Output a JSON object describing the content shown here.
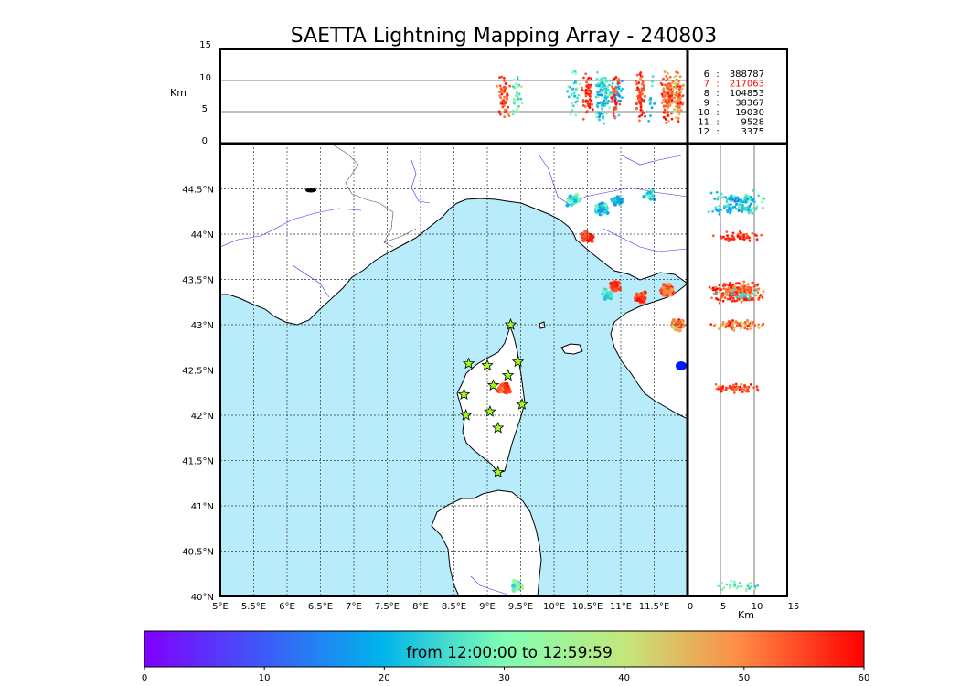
{
  "chart_data": {
    "type": "scatter",
    "title": "SAETTA Lightning Mapping Array - 240803",
    "map": {
      "lon_range": [
        5,
        12
      ],
      "lat_range": [
        40,
        45
      ],
      "lon_tick_labels": [
        "5°E",
        "5.5°E",
        "6°E",
        "6.5°E",
        "7°E",
        "7.5°E",
        "8°E",
        "8.5°E",
        "9°E",
        "9.5°E",
        "10°E",
        "10.5°E",
        "11°E",
        "11.5°E"
      ],
      "lat_tick_labels": [
        "40°N",
        "40.5°N",
        "41°N",
        "41.5°N",
        "42°N",
        "42.5°N",
        "43°N",
        "43.5°N",
        "44°N",
        "44.5°N"
      ],
      "grid": true,
      "sea_color": "#b8ecfb"
    },
    "altitude_panel": {
      "ylabel": "Km",
      "ylim": [
        0,
        15
      ],
      "tick_labels": [
        "0",
        "5",
        "10",
        "15"
      ],
      "hlines_km": [
        5,
        10
      ]
    },
    "side_panel": {
      "xlabel": "Km",
      "xlim": [
        0,
        15
      ],
      "tick_labels": [
        "0",
        "5",
        "10",
        "15"
      ],
      "vlines_km": [
        5,
        10
      ]
    },
    "station_counts": [
      {
        "stations": "6",
        "sep": ":",
        "count": "388787",
        "color": "#000000"
      },
      {
        "stations": "7",
        "sep": ":",
        "count": "217063",
        "color": "#ff0000"
      },
      {
        "stations": "8",
        "sep": ":",
        "count": "104853",
        "color": "#000000"
      },
      {
        "stations": "9",
        "sep": ":",
        "count": "38367",
        "color": "#000000"
      },
      {
        "stations": "10",
        "sep": ":",
        "count": "19030",
        "color": "#000000"
      },
      {
        "stations": "11",
        "sep": ":",
        "count": "9528",
        "color": "#000000"
      },
      {
        "stations": "12",
        "sep": ":",
        "count": "3375",
        "color": "#000000"
      }
    ],
    "stations": [
      {
        "lon": 9.35,
        "lat": 43.0
      },
      {
        "lon": 8.72,
        "lat": 42.57
      },
      {
        "lon": 9.0,
        "lat": 42.55
      },
      {
        "lon": 9.46,
        "lat": 42.59
      },
      {
        "lon": 9.31,
        "lat": 42.44
      },
      {
        "lon": 9.09,
        "lat": 42.33
      },
      {
        "lon": 8.65,
        "lat": 42.23
      },
      {
        "lon": 9.52,
        "lat": 42.12
      },
      {
        "lon": 9.04,
        "lat": 42.04
      },
      {
        "lon": 8.68,
        "lat": 42.0
      },
      {
        "lon": 9.16,
        "lat": 41.86
      },
      {
        "lon": 9.16,
        "lat": 41.37
      }
    ],
    "sources": [
      {
        "lon": 10.3,
        "lat": 44.38,
        "n": 30,
        "t0": 18,
        "t1": 32
      },
      {
        "lon": 10.7,
        "lat": 44.28,
        "n": 80,
        "t0": 15,
        "t1": 30
      },
      {
        "lon": 10.95,
        "lat": 44.36,
        "n": 30,
        "t0": 12,
        "t1": 28
      },
      {
        "lon": 11.45,
        "lat": 44.42,
        "n": 15,
        "t0": 18,
        "t1": 30
      },
      {
        "lon": 10.5,
        "lat": 43.97,
        "n": 50,
        "t0": 52,
        "t1": 60
      },
      {
        "lon": 10.9,
        "lat": 43.43,
        "n": 40,
        "t0": 50,
        "t1": 60
      },
      {
        "lon": 11.3,
        "lat": 43.3,
        "n": 60,
        "t0": 50,
        "t1": 60
      },
      {
        "lon": 11.7,
        "lat": 43.38,
        "n": 130,
        "t0": 45,
        "t1": 60
      },
      {
        "lon": 11.85,
        "lat": 43.0,
        "n": 90,
        "t0": 40,
        "t1": 60
      },
      {
        "lon": 10.8,
        "lat": 43.33,
        "n": 25,
        "t0": 20,
        "t1": 32
      },
      {
        "lon": 9.25,
        "lat": 42.3,
        "n": 60,
        "t0": 48,
        "t1": 60
      },
      {
        "lon": 9.45,
        "lat": 40.12,
        "n": 30,
        "t0": 22,
        "t1": 40
      }
    ],
    "colorbar": {
      "label": "from 12:00:00 to 12:59:59",
      "range": [
        0,
        60
      ],
      "tick_labels": [
        "0",
        "10",
        "20",
        "30",
        "40",
        "50",
        "60"
      ],
      "colormap": "rainbow"
    }
  }
}
